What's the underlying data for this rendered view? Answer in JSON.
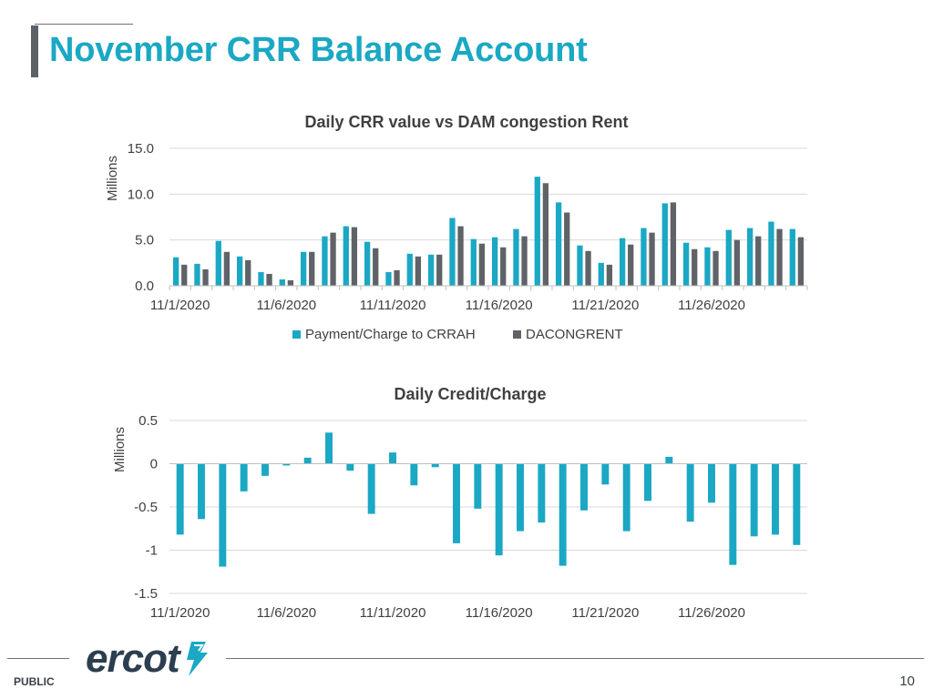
{
  "slide": {
    "title": "November CRR Balance Account",
    "footer_label": "PUBLIC",
    "page_number": "10",
    "logo_text": "ercot"
  },
  "colors": {
    "title": "#1aa8c4",
    "series_teal": "#1aa8c4",
    "series_gray": "#5f6368",
    "grid": "#d9d9d9",
    "text": "#404040"
  },
  "chart_data": [
    {
      "type": "bar",
      "title": "Daily CRR value vs DAM congestion Rent",
      "ylabel": "Millions",
      "ylim": [
        0,
        15
      ],
      "yticks": [
        "0.0",
        "5.0",
        "10.0",
        "15.0"
      ],
      "ytick_values": [
        0,
        5,
        10,
        15
      ],
      "xtick_labels": [
        "11/1/2020",
        "11/6/2020",
        "11/11/2020",
        "11/16/2020",
        "11/21/2020",
        "11/26/2020"
      ],
      "categories": [
        "11/1/2020",
        "11/2/2020",
        "11/3/2020",
        "11/4/2020",
        "11/5/2020",
        "11/6/2020",
        "11/7/2020",
        "11/8/2020",
        "11/9/2020",
        "11/10/2020",
        "11/11/2020",
        "11/12/2020",
        "11/13/2020",
        "11/14/2020",
        "11/15/2020",
        "11/16/2020",
        "11/17/2020",
        "11/18/2020",
        "11/19/2020",
        "11/20/2020",
        "11/21/2020",
        "11/22/2020",
        "11/23/2020",
        "11/24/2020",
        "11/25/2020",
        "11/26/2020",
        "11/27/2020",
        "11/28/2020",
        "11/29/2020",
        "11/30/2020"
      ],
      "legend": "bottom",
      "grid": true,
      "series": [
        {
          "name": "Payment/Charge to CRRAH",
          "color": "#1aa8c4",
          "values": [
            3.1,
            2.4,
            4.9,
            3.2,
            1.5,
            0.7,
            3.7,
            5.4,
            6.5,
            4.8,
            1.5,
            3.5,
            3.4,
            7.4,
            5.1,
            5.3,
            6.2,
            11.9,
            9.1,
            4.4,
            2.5,
            5.2,
            6.3,
            9.0,
            4.7,
            4.2,
            6.1,
            6.3,
            7.0,
            6.2
          ]
        },
        {
          "name": "DACONGRENT",
          "color": "#5f6368",
          "values": [
            2.3,
            1.8,
            3.7,
            2.8,
            1.3,
            0.6,
            3.7,
            5.8,
            6.4,
            4.1,
            1.7,
            3.2,
            3.4,
            6.5,
            4.6,
            4.2,
            5.4,
            11.2,
            8.0,
            3.8,
            2.3,
            4.5,
            5.8,
            9.1,
            4.0,
            3.8,
            5.0,
            5.4,
            6.2,
            5.3
          ]
        }
      ]
    },
    {
      "type": "bar",
      "title": "Daily Credit/Charge",
      "ylabel": "Millions",
      "ylim": [
        -1.5,
        0.5
      ],
      "yticks": [
        "0.5",
        "0",
        "-0.5",
        "-1",
        "-1.5"
      ],
      "ytick_values": [
        0.5,
        0,
        -0.5,
        -1,
        -1.5
      ],
      "xtick_labels": [
        "11/1/2020",
        "11/6/2020",
        "11/11/2020",
        "11/16/2020",
        "11/21/2020",
        "11/26/2020"
      ],
      "categories": [
        "11/1/2020",
        "11/2/2020",
        "11/3/2020",
        "11/4/2020",
        "11/5/2020",
        "11/6/2020",
        "11/7/2020",
        "11/8/2020",
        "11/9/2020",
        "11/10/2020",
        "11/11/2020",
        "11/12/2020",
        "11/13/2020",
        "11/14/2020",
        "11/15/2020",
        "11/16/2020",
        "11/17/2020",
        "11/18/2020",
        "11/19/2020",
        "11/20/2020",
        "11/21/2020",
        "11/22/2020",
        "11/23/2020",
        "11/24/2020",
        "11/25/2020",
        "11/26/2020",
        "11/27/2020",
        "11/28/2020",
        "11/29/2020",
        "11/30/2020"
      ],
      "legend": "none",
      "grid": true,
      "series": [
        {
          "name": "",
          "color": "#1aa8c4",
          "values": [
            -0.82,
            -0.64,
            -1.19,
            -0.32,
            -0.14,
            -0.02,
            0.07,
            0.36,
            -0.08,
            -0.58,
            0.13,
            -0.25,
            -0.04,
            -0.92,
            -0.52,
            -1.06,
            -0.78,
            -0.68,
            -1.18,
            -0.54,
            -0.24,
            -0.78,
            -0.43,
            0.08,
            -0.67,
            -0.45,
            -1.17,
            -0.84,
            -0.82,
            -0.94
          ]
        }
      ]
    }
  ]
}
